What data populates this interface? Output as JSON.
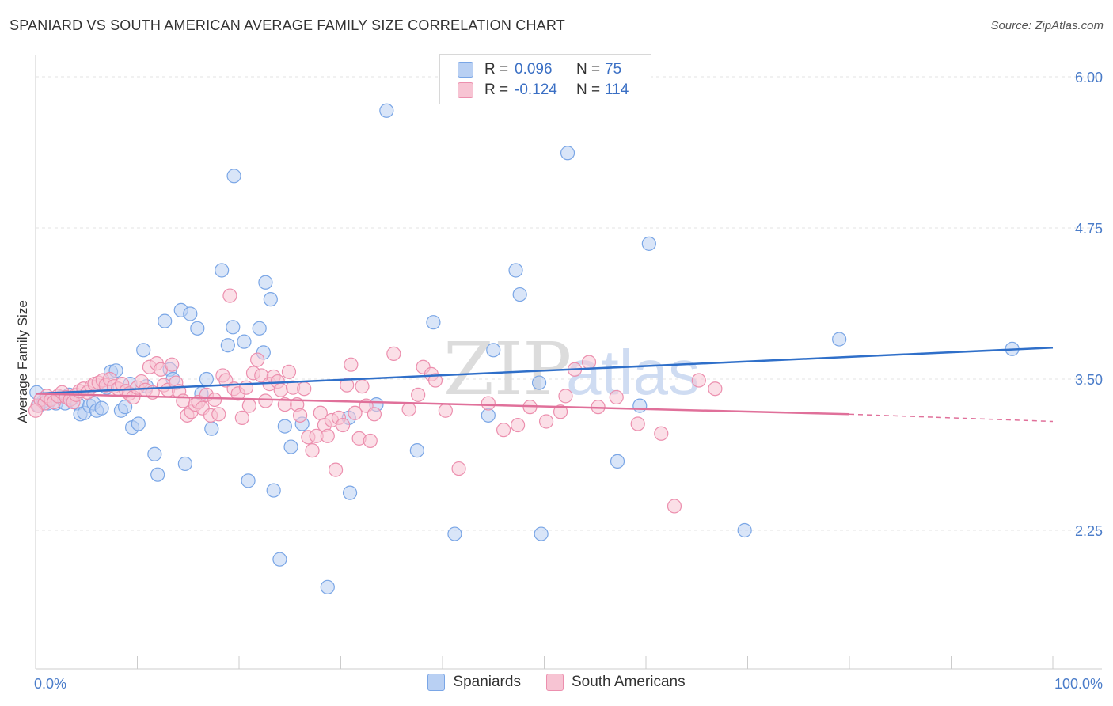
{
  "header": {
    "title": "SPANIARD VS SOUTH AMERICAN AVERAGE FAMILY SIZE CORRELATION CHART",
    "source": "Source: ZipAtlas.com"
  },
  "watermark": {
    "part1": "ZIP",
    "part2": "atlas"
  },
  "legend": {
    "rows": [
      {
        "r_label": "R =",
        "r_value": "0.096",
        "n_label": "N =",
        "n_value": "75"
      },
      {
        "r_label": "R =",
        "r_value": "-0.124",
        "n_label": "N =",
        "n_value": "114"
      }
    ]
  },
  "chart_data": {
    "type": "scatter",
    "title": "SPANIARD VS SOUTH AMERICAN AVERAGE FAMILY SIZE CORRELATION CHART",
    "xlabel": "",
    "ylabel": "Average Family Size",
    "xlim": [
      0,
      100
    ],
    "ylim": [
      1.0,
      6.2
    ],
    "y_ticks": [
      {
        "value": 6.0,
        "label": "6.00"
      },
      {
        "value": 4.75,
        "label": "4.75"
      },
      {
        "value": 3.5,
        "label": "3.50"
      },
      {
        "value": 2.25,
        "label": "2.25"
      }
    ],
    "x_tick_labels": {
      "min": "0.0%",
      "max": "100.0%"
    },
    "x_minor_ticks": [
      10,
      20,
      30,
      40,
      50,
      60,
      70,
      80,
      90,
      100
    ],
    "grid": true,
    "legend_placement": "bottom",
    "series": [
      {
        "name": "Spaniards",
        "color": "#7aa6e6",
        "fill": "#b9d0f3",
        "trend": {
          "x": [
            0,
            100
          ],
          "y": [
            3.38,
            3.76
          ]
        },
        "points": [
          [
            0.3,
            3.28
          ],
          [
            0.8,
            3.32
          ],
          [
            1.2,
            3.3
          ],
          [
            1.6,
            3.34
          ],
          [
            2.0,
            3.3
          ],
          [
            2.5,
            3.35
          ],
          [
            2.9,
            3.3
          ],
          [
            3.3,
            3.37
          ],
          [
            3.6,
            3.34
          ],
          [
            4.1,
            3.3
          ],
          [
            4.4,
            3.21
          ],
          [
            4.8,
            3.22
          ],
          [
            5.3,
            3.28
          ],
          [
            5.7,
            3.3
          ],
          [
            6.0,
            3.24
          ],
          [
            6.5,
            3.26
          ],
          [
            7.0,
            3.43
          ],
          [
            7.4,
            3.56
          ],
          [
            7.9,
            3.57
          ],
          [
            8.4,
            3.24
          ],
          [
            8.8,
            3.27
          ],
          [
            9.3,
            3.46
          ],
          [
            9.5,
            3.1
          ],
          [
            10.1,
            3.13
          ],
          [
            10.6,
            3.74
          ],
          [
            10.9,
            3.44
          ],
          [
            11.7,
            2.88
          ],
          [
            12.0,
            2.71
          ],
          [
            12.7,
            3.98
          ],
          [
            13.2,
            3.58
          ],
          [
            13.5,
            3.5
          ],
          [
            14.3,
            4.07
          ],
          [
            14.7,
            2.8
          ],
          [
            15.2,
            4.04
          ],
          [
            15.9,
            3.92
          ],
          [
            16.3,
            3.38
          ],
          [
            16.8,
            3.5
          ],
          [
            17.3,
            3.09
          ],
          [
            18.3,
            4.4
          ],
          [
            18.9,
            3.78
          ],
          [
            19.4,
            3.93
          ],
          [
            19.5,
            5.18
          ],
          [
            20.5,
            3.81
          ],
          [
            20.9,
            2.66
          ],
          [
            22.0,
            3.92
          ],
          [
            22.4,
            3.72
          ],
          [
            22.6,
            4.3
          ],
          [
            23.1,
            4.16
          ],
          [
            23.4,
            2.58
          ],
          [
            24.0,
            2.01
          ],
          [
            24.5,
            3.11
          ],
          [
            25.1,
            2.94
          ],
          [
            26.2,
            3.13
          ],
          [
            28.7,
            1.78
          ],
          [
            30.8,
            3.18
          ],
          [
            30.9,
            2.56
          ],
          [
            33.5,
            3.29
          ],
          [
            34.5,
            5.72
          ],
          [
            37.5,
            2.91
          ],
          [
            39.1,
            3.97
          ],
          [
            41.2,
            2.22
          ],
          [
            44.5,
            3.2
          ],
          [
            45.0,
            3.74
          ],
          [
            47.2,
            4.4
          ],
          [
            47.6,
            4.2
          ],
          [
            49.5,
            3.47
          ],
          [
            49.7,
            2.22
          ],
          [
            52.3,
            5.37
          ],
          [
            57.2,
            2.82
          ],
          [
            59.4,
            3.28
          ],
          [
            60.3,
            4.62
          ],
          [
            69.7,
            2.25
          ],
          [
            79.0,
            3.83
          ],
          [
            96.0,
            3.75
          ],
          [
            0.1,
            3.39
          ]
        ]
      },
      {
        "name": "South Americans",
        "color": "#ec8fae",
        "fill": "#f7c4d3",
        "trend": {
          "x": [
            0,
            80
          ],
          "y": [
            3.38,
            3.21
          ]
        },
        "trend_dashed": {
          "x": [
            80,
            100
          ],
          "y": [
            3.21,
            3.15
          ]
        },
        "points": [
          [
            0.2,
            3.28
          ],
          [
            0.5,
            3.33
          ],
          [
            0.9,
            3.3
          ],
          [
            1.1,
            3.36
          ],
          [
            1.5,
            3.33
          ],
          [
            1.8,
            3.31
          ],
          [
            2.2,
            3.36
          ],
          [
            2.6,
            3.39
          ],
          [
            3.0,
            3.35
          ],
          [
            3.4,
            3.33
          ],
          [
            3.7,
            3.31
          ],
          [
            4.0,
            3.37
          ],
          [
            4.3,
            3.4
          ],
          [
            4.7,
            3.42
          ],
          [
            5.1,
            3.39
          ],
          [
            5.5,
            3.44
          ],
          [
            5.8,
            3.46
          ],
          [
            6.2,
            3.47
          ],
          [
            6.6,
            3.49
          ],
          [
            6.9,
            3.45
          ],
          [
            7.3,
            3.5
          ],
          [
            7.7,
            3.44
          ],
          [
            8.1,
            3.42
          ],
          [
            8.5,
            3.46
          ],
          [
            8.9,
            3.4
          ],
          [
            9.2,
            3.38
          ],
          [
            9.6,
            3.35
          ],
          [
            10.0,
            3.43
          ],
          [
            10.4,
            3.48
          ],
          [
            10.8,
            3.41
          ],
          [
            11.2,
            3.6
          ],
          [
            11.5,
            3.39
          ],
          [
            11.9,
            3.63
          ],
          [
            12.3,
            3.58
          ],
          [
            12.6,
            3.45
          ],
          [
            13.0,
            3.41
          ],
          [
            13.4,
            3.62
          ],
          [
            13.8,
            3.47
          ],
          [
            14.1,
            3.4
          ],
          [
            14.5,
            3.32
          ],
          [
            14.9,
            3.2
          ],
          [
            15.3,
            3.23
          ],
          [
            15.7,
            3.29
          ],
          [
            16.0,
            3.31
          ],
          [
            16.4,
            3.26
          ],
          [
            16.8,
            3.37
          ],
          [
            17.2,
            3.2
          ],
          [
            17.6,
            3.33
          ],
          [
            18.0,
            3.21
          ],
          [
            18.4,
            3.53
          ],
          [
            18.7,
            3.49
          ],
          [
            19.1,
            4.19
          ],
          [
            19.5,
            3.42
          ],
          [
            19.9,
            3.38
          ],
          [
            20.3,
            3.18
          ],
          [
            20.7,
            3.43
          ],
          [
            21.0,
            3.28
          ],
          [
            21.4,
            3.55
          ],
          [
            21.8,
            3.66
          ],
          [
            22.2,
            3.53
          ],
          [
            22.6,
            3.32
          ],
          [
            23.0,
            3.46
          ],
          [
            23.4,
            3.52
          ],
          [
            23.8,
            3.48
          ],
          [
            24.1,
            3.41
          ],
          [
            24.5,
            3.29
          ],
          [
            24.9,
            3.56
          ],
          [
            25.3,
            3.43
          ],
          [
            25.7,
            3.29
          ],
          [
            26.0,
            3.2
          ],
          [
            26.4,
            3.42
          ],
          [
            26.8,
            3.02
          ],
          [
            27.2,
            2.91
          ],
          [
            27.6,
            3.03
          ],
          [
            28.0,
            3.22
          ],
          [
            28.4,
            3.12
          ],
          [
            28.7,
            3.03
          ],
          [
            29.1,
            3.16
          ],
          [
            29.5,
            2.75
          ],
          [
            29.8,
            3.18
          ],
          [
            30.2,
            3.12
          ],
          [
            30.6,
            3.45
          ],
          [
            31.0,
            3.62
          ],
          [
            31.4,
            3.22
          ],
          [
            31.8,
            3.01
          ],
          [
            32.1,
            3.44
          ],
          [
            32.5,
            3.28
          ],
          [
            32.9,
            2.99
          ],
          [
            33.3,
            3.21
          ],
          [
            35.2,
            3.71
          ],
          [
            36.7,
            3.25
          ],
          [
            37.6,
            3.37
          ],
          [
            38.1,
            3.6
          ],
          [
            38.9,
            3.54
          ],
          [
            39.3,
            3.49
          ],
          [
            40.3,
            3.24
          ],
          [
            41.6,
            2.76
          ],
          [
            44.5,
            3.3
          ],
          [
            46.0,
            3.08
          ],
          [
            47.4,
            3.12
          ],
          [
            48.6,
            3.27
          ],
          [
            50.2,
            3.15
          ],
          [
            51.6,
            3.23
          ],
          [
            52.1,
            3.36
          ],
          [
            53.0,
            3.58
          ],
          [
            54.4,
            3.64
          ],
          [
            55.3,
            3.27
          ],
          [
            57.1,
            3.35
          ],
          [
            59.2,
            3.13
          ],
          [
            61.5,
            3.05
          ],
          [
            62.8,
            2.45
          ],
          [
            65.2,
            3.49
          ],
          [
            66.8,
            3.42
          ],
          [
            0.0,
            3.24
          ]
        ]
      }
    ]
  }
}
